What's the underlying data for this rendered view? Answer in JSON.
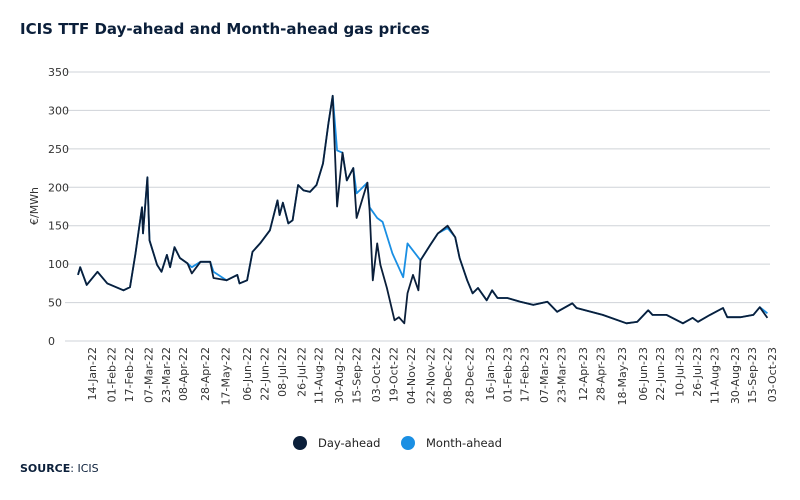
{
  "chart_data": {
    "type": "line",
    "title": "ICIS TTF Day-ahead and Month-ahead gas prices",
    "ylabel": "€/MWh",
    "xlabel": "",
    "x_units": "days since 01-Jan-2022",
    "ylim": [
      0,
      350
    ],
    "yticks": [
      0,
      50,
      100,
      150,
      200,
      250,
      300,
      350
    ],
    "grid": true,
    "legend_position": "bottom-center",
    "xtick_labels": [
      "14-Jan-22",
      "01-Feb-22",
      "17-Feb-22",
      "07-Mar-22",
      "23-Mar-22",
      "08-Apr-22",
      "28-Apr-22",
      "17-May-22",
      "06-Jun-22",
      "22-Jun-22",
      "08-Jul-22",
      "26-Jul-22",
      "11-Aug-22",
      "30-Aug-22",
      "15-Sep-22",
      "03-Oct-22",
      "19-Oct-22",
      "04-Nov-22",
      "22-Nov-22",
      "08-Dec-22",
      "28-Dec-22",
      "16-Jan-23",
      "01-Feb-23",
      "17-Feb-23",
      "07-Mar-23",
      "23-Mar-23",
      "12-Apr-23",
      "28-Apr-23",
      "18-May-23",
      "06-Jun-23",
      "22-Jun-23",
      "10-Jul-23",
      "26-Jul-23",
      "11-Aug-23",
      "30-Aug-23",
      "15-Sep-23",
      "03-Oct-23"
    ],
    "series": [
      {
        "name": "Day-ahead",
        "color": "#0b1f3a",
        "points": [
          [
            0,
            86
          ],
          [
            2,
            96
          ],
          [
            8,
            73
          ],
          [
            18,
            90
          ],
          [
            27,
            75
          ],
          [
            42,
            66
          ],
          [
            48,
            70
          ],
          [
            53,
            114
          ],
          [
            59,
            174
          ],
          [
            60,
            140
          ],
          [
            64,
            213
          ],
          [
            66,
            131
          ],
          [
            73,
            99
          ],
          [
            77,
            90
          ],
          [
            82,
            112
          ],
          [
            85,
            96
          ],
          [
            89,
            122
          ],
          [
            94,
            108
          ],
          [
            101,
            101
          ],
          [
            105,
            88
          ],
          [
            113,
            103
          ],
          [
            122,
            103
          ],
          [
            125,
            82
          ],
          [
            137,
            79
          ],
          [
            147,
            86
          ],
          [
            149,
            75
          ],
          [
            156,
            79
          ],
          [
            161,
            116
          ],
          [
            168,
            127
          ],
          [
            177,
            144
          ],
          [
            184,
            183
          ],
          [
            186,
            164
          ],
          [
            189,
            180
          ],
          [
            194,
            153
          ],
          [
            198,
            157
          ],
          [
            203,
            203
          ],
          [
            208,
            196
          ],
          [
            214,
            194
          ],
          [
            220,
            203
          ],
          [
            226,
            231
          ],
          [
            231,
            283
          ],
          [
            235,
            319
          ],
          [
            239,
            175
          ],
          [
            244,
            245
          ],
          [
            248,
            209
          ],
          [
            254,
            225
          ],
          [
            257,
            160
          ],
          [
            267,
            206
          ],
          [
            269,
            170
          ],
          [
            272,
            79
          ],
          [
            276,
            127
          ],
          [
            279,
            99
          ],
          [
            285,
            69
          ],
          [
            292,
            27
          ],
          [
            296,
            31
          ],
          [
            301,
            23
          ],
          [
            304,
            62
          ],
          [
            309,
            86
          ],
          [
            314,
            66
          ],
          [
            316,
            105
          ],
          [
            325,
            125
          ],
          [
            332,
            140
          ],
          [
            341,
            150
          ],
          [
            348,
            135
          ],
          [
            352,
            108
          ],
          [
            359,
            79
          ],
          [
            364,
            62
          ],
          [
            369,
            69
          ],
          [
            377,
            53
          ],
          [
            382,
            66
          ],
          [
            387,
            56
          ],
          [
            396,
            56
          ],
          [
            408,
            51
          ],
          [
            420,
            47
          ],
          [
            433,
            51
          ],
          [
            442,
            38
          ],
          [
            456,
            49
          ],
          [
            460,
            43
          ],
          [
            484,
            34
          ],
          [
            506,
            23
          ],
          [
            516,
            25
          ],
          [
            526,
            40
          ],
          [
            530,
            34
          ],
          [
            543,
            34
          ],
          [
            558,
            23
          ],
          [
            567,
            30
          ],
          [
            572,
            25
          ],
          [
            583,
            34
          ],
          [
            595,
            43
          ],
          [
            599,
            31
          ],
          [
            611,
            31
          ],
          [
            623,
            34
          ],
          [
            629,
            44
          ],
          [
            636,
            30
          ]
        ]
      },
      {
        "name": "Month-ahead",
        "color": "#1a8fe3",
        "points": [
          [
            0,
            86
          ],
          [
            2,
            96
          ],
          [
            8,
            73
          ],
          [
            18,
            90
          ],
          [
            27,
            75
          ],
          [
            42,
            66
          ],
          [
            48,
            70
          ],
          [
            53,
            114
          ],
          [
            59,
            174
          ],
          [
            60,
            140
          ],
          [
            64,
            213
          ],
          [
            66,
            131
          ],
          [
            73,
            99
          ],
          [
            77,
            90
          ],
          [
            82,
            112
          ],
          [
            85,
            96
          ],
          [
            89,
            122
          ],
          [
            94,
            108
          ],
          [
            101,
            101
          ],
          [
            105,
            96
          ],
          [
            113,
            103
          ],
          [
            122,
            103
          ],
          [
            125,
            90
          ],
          [
            137,
            79
          ],
          [
            147,
            86
          ],
          [
            149,
            75
          ],
          [
            156,
            79
          ],
          [
            161,
            116
          ],
          [
            168,
            127
          ],
          [
            177,
            144
          ],
          [
            184,
            183
          ],
          [
            186,
            164
          ],
          [
            189,
            180
          ],
          [
            194,
            153
          ],
          [
            198,
            157
          ],
          [
            203,
            203
          ],
          [
            208,
            196
          ],
          [
            214,
            194
          ],
          [
            220,
            203
          ],
          [
            226,
            231
          ],
          [
            231,
            283
          ],
          [
            235,
            319
          ],
          [
            239,
            248
          ],
          [
            244,
            245
          ],
          [
            248,
            209
          ],
          [
            254,
            225
          ],
          [
            257,
            192
          ],
          [
            267,
            206
          ],
          [
            269,
            174
          ],
          [
            276,
            160
          ],
          [
            281,
            155
          ],
          [
            290,
            114
          ],
          [
            300,
            83
          ],
          [
            304,
            127
          ],
          [
            316,
            105
          ],
          [
            325,
            125
          ],
          [
            332,
            140
          ],
          [
            341,
            147
          ],
          [
            348,
            135
          ],
          [
            352,
            108
          ],
          [
            359,
            79
          ],
          [
            364,
            62
          ],
          [
            369,
            69
          ],
          [
            377,
            53
          ],
          [
            382,
            66
          ],
          [
            387,
            56
          ],
          [
            396,
            56
          ],
          [
            408,
            51
          ],
          [
            420,
            47
          ],
          [
            433,
            51
          ],
          [
            442,
            38
          ],
          [
            456,
            49
          ],
          [
            460,
            43
          ],
          [
            484,
            34
          ],
          [
            506,
            23
          ],
          [
            516,
            25
          ],
          [
            526,
            40
          ],
          [
            530,
            34
          ],
          [
            543,
            34
          ],
          [
            558,
            23
          ],
          [
            567,
            30
          ],
          [
            572,
            25
          ],
          [
            583,
            34
          ],
          [
            595,
            43
          ],
          [
            599,
            31
          ],
          [
            611,
            31
          ],
          [
            623,
            34
          ],
          [
            629,
            44
          ],
          [
            636,
            36
          ]
        ]
      }
    ]
  },
  "source_label": "SOURCE",
  "source_value": ": ICIS"
}
